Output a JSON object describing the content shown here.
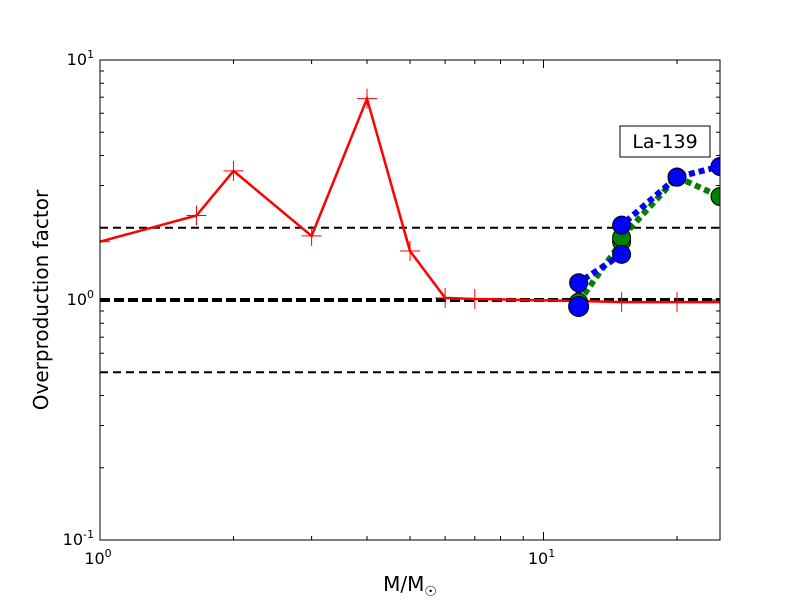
{
  "chart_data": {
    "type": "line",
    "title": "",
    "xlabel": "M/M",
    "xlabel_sub": "☉",
    "ylabel": "Overproduction factor",
    "xscale": "log",
    "yscale": "log",
    "xlim": [
      1,
      25
    ],
    "ylim": [
      0.1,
      10
    ],
    "x_ticks": [
      {
        "value": 1,
        "base": "10",
        "exp": "0"
      },
      {
        "value": 10,
        "base": "10",
        "exp": "1"
      }
    ],
    "y_ticks": [
      {
        "value": 0.1,
        "base": "10",
        "exp": "-1"
      },
      {
        "value": 1,
        "base": "10",
        "exp": "0"
      },
      {
        "value": 10,
        "base": "10",
        "exp": "1"
      }
    ],
    "annotation": "La-139",
    "reference_lines": [
      {
        "y": 2.0,
        "color": "#000000",
        "style": "dashed",
        "weight": "normal"
      },
      {
        "y": 1.0,
        "color": "#000000",
        "style": "dashed",
        "weight": "bold"
      },
      {
        "y": 0.5,
        "color": "#000000",
        "style": "dashed",
        "weight": "normal"
      }
    ],
    "series": [
      {
        "color": "#ff0000",
        "line": "solid",
        "marker": "plus",
        "x": [
          1.0,
          1.65,
          2.0,
          3.0,
          4.0,
          5.0,
          6.0,
          7.0,
          12.0,
          15.0,
          20.0,
          25.0
        ],
        "y": [
          1.75,
          2.25,
          3.45,
          1.85,
          6.9,
          1.6,
          1.02,
          1.01,
          0.99,
          0.98,
          0.98,
          0.98
        ]
      },
      {
        "color": "#008000",
        "line": "dotted",
        "marker": "circle",
        "x": [
          12.0,
          15.0,
          15.0,
          20.0,
          25.0
        ],
        "y": [
          0.98,
          1.75,
          1.82,
          3.25,
          2.7
        ]
      },
      {
        "color": "#0000ff",
        "line": "dotted",
        "marker": "circle",
        "x": [
          12.0,
          12.0,
          15.0,
          15.0,
          20.0,
          25.0
        ],
        "y": [
          0.94,
          1.18,
          1.55,
          2.05,
          3.25,
          3.6
        ]
      }
    ]
  }
}
